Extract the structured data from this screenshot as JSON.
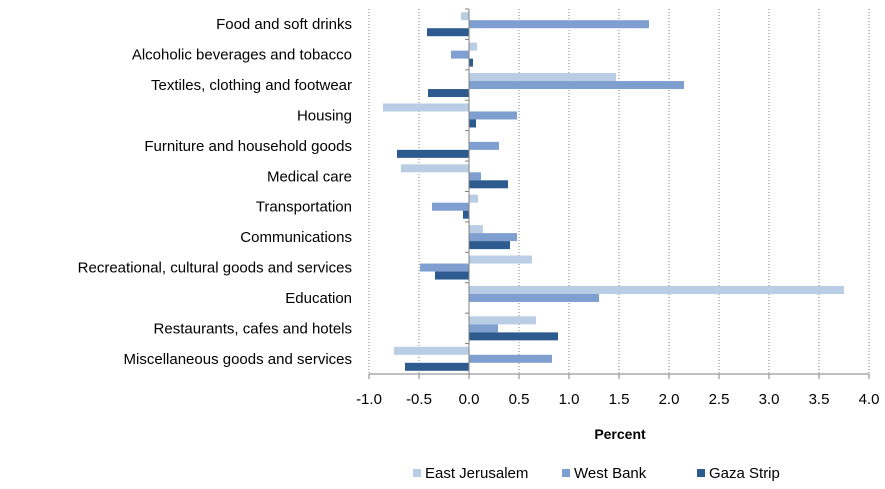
{
  "chart_data": {
    "type": "bar",
    "orientation": "horizontal",
    "categories": [
      "Food and soft drinks",
      "Alcoholic beverages and tobacco",
      "Textiles, clothing and footwear",
      "Housing",
      "Furniture and household goods",
      "Medical care",
      "Transportation",
      "Communications",
      "Recreational, cultural goods and services",
      "Education",
      "Restaurants, cafes and hotels",
      "Miscellaneous goods and services"
    ],
    "series": [
      {
        "name": "East Jerusalem",
        "color": "#b9cde5",
        "values": [
          -0.08,
          0.08,
          1.47,
          -0.86,
          0.0,
          -0.68,
          0.09,
          0.14,
          0.63,
          3.75,
          0.67,
          -0.75
        ]
      },
      {
        "name": "West Bank",
        "color": "#7f9fd0",
        "values": [
          1.8,
          -0.18,
          2.15,
          0.48,
          0.3,
          0.12,
          -0.37,
          0.48,
          -0.49,
          1.3,
          0.29,
          0.83
        ]
      },
      {
        "name": "Gaza Strip",
        "color": "#2e5b8f",
        "values": [
          -0.42,
          0.04,
          -0.41,
          0.07,
          -0.72,
          0.39,
          -0.06,
          0.41,
          -0.34,
          0.0,
          0.89,
          -0.64
        ]
      }
    ],
    "xlabel": "Percent",
    "xlim": [
      -1.0,
      4.0
    ],
    "xticks": [
      -1.0,
      -0.5,
      0.0,
      0.5,
      1.0,
      1.5,
      2.0,
      2.5,
      3.0,
      3.5,
      4.0
    ],
    "xtick_labels": [
      "-1.0",
      "-0.5",
      "0.0",
      "0.5",
      "1.0",
      "1.5",
      "2.0",
      "2.5",
      "3.0",
      "3.5",
      "4.0"
    ],
    "grid": "vertical dotted",
    "legend_position": "bottom-right"
  }
}
